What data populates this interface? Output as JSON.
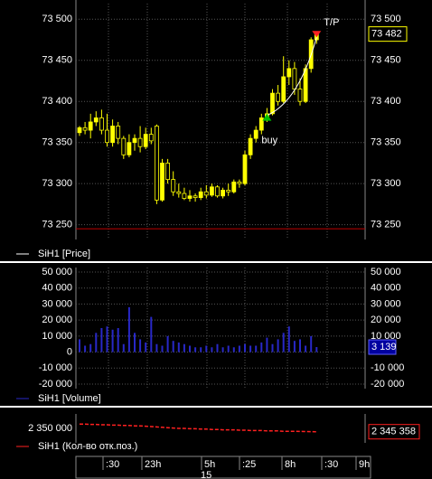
{
  "chart_data": [
    {
      "type": "candlestick",
      "legend": "SiH1 [Price]",
      "up_color": "#ffff00",
      "down_color": "#000000",
      "wick_color": "#ffff00",
      "open": [
        73362,
        73368,
        73365,
        73375,
        73380,
        73365,
        73350,
        73370,
        73355,
        73335,
        73350,
        73355,
        73345,
        73360,
        73370,
        73280,
        73325,
        73305,
        73290,
        73288,
        73282,
        73285,
        73283,
        73290,
        73286,
        73296,
        73285,
        73292,
        73290,
        73302,
        73300,
        73335,
        73355,
        73365,
        73380,
        73385,
        73410,
        73400,
        73430,
        73440,
        73415,
        73400,
        73440,
        73475
      ],
      "high": [
        73370,
        73375,
        73385,
        73388,
        73390,
        73385,
        73378,
        73375,
        73358,
        73360,
        73360,
        73370,
        73368,
        73368,
        73372,
        73330,
        73330,
        73315,
        73300,
        73295,
        73292,
        73288,
        73295,
        73298,
        73300,
        73298,
        73295,
        73300,
        73305,
        73305,
        73340,
        73360,
        73370,
        73385,
        73392,
        73415,
        73420,
        73455,
        73450,
        73448,
        73428,
        73445,
        73478,
        73482
      ],
      "low": [
        73358,
        73360,
        73355,
        73370,
        73360,
        73345,
        73345,
        73348,
        73330,
        73332,
        73340,
        73338,
        73342,
        73348,
        73275,
        73278,
        73300,
        73285,
        73283,
        73280,
        73278,
        73278,
        73280,
        73282,
        73284,
        73283,
        73282,
        73285,
        73288,
        73295,
        73298,
        73330,
        73350,
        73360,
        73375,
        73383,
        73395,
        73398,
        73420,
        73408,
        73395,
        73398,
        73435,
        73470
      ],
      "close": [
        73368,
        73365,
        73375,
        73380,
        73365,
        73350,
        73370,
        73355,
        73335,
        73350,
        73355,
        73345,
        73360,
        73352,
        73280,
        73325,
        73305,
        73290,
        73288,
        73282,
        73285,
        73283,
        73290,
        73286,
        73296,
        73285,
        73292,
        73290,
        73302,
        73300,
        73335,
        73355,
        73365,
        73380,
        73385,
        73410,
        73400,
        73430,
        73440,
        73415,
        73400,
        73440,
        73475,
        73482
      ],
      "ylim": [
        73232,
        73519
      ],
      "yticks": [
        {
          "value": 73500,
          "label": "73 500"
        },
        {
          "value": 73450,
          "label": "73 450"
        },
        {
          "value": 73400,
          "label": "73 400"
        },
        {
          "value": 73350,
          "label": "73 350"
        },
        {
          "value": 73300,
          "label": "73 300"
        },
        {
          "value": 73250,
          "label": "73 250"
        }
      ],
      "grid": true,
      "level": 73245,
      "level_color": "#c00000",
      "current": {
        "value": 73482,
        "label": "73 482"
      },
      "current_color": "#ffff00",
      "annotations": [
        {
          "text": "T/P",
          "value": 73478,
          "color": "#ff2020"
        },
        {
          "text": "buy",
          "value": 73383,
          "color": "#00c000"
        }
      ]
    },
    {
      "type": "bar",
      "legend": "SiH1 [Volume]",
      "color": "#2828c8",
      "values": [
        8000,
        4000,
        5000,
        12000,
        15000,
        16000,
        14000,
        15000,
        5000,
        28000,
        12000,
        8000,
        6000,
        22000,
        5000,
        4000,
        10000,
        7000,
        6000,
        5000,
        4000,
        3000,
        3000,
        4000,
        3000,
        5000,
        3000,
        4000,
        3000,
        4000,
        5000,
        4000,
        4000,
        6000,
        9000,
        5000,
        8000,
        12000,
        16000,
        7000,
        8000,
        4000,
        10000,
        3139
      ],
      "ylim": [
        -22800,
        52800
      ],
      "yticks": [
        {
          "value": 50000,
          "label": "50 000"
        },
        {
          "value": 40000,
          "label": "40 000"
        },
        {
          "value": 30000,
          "label": "30 000"
        },
        {
          "value": 20000,
          "label": "20 000"
        },
        {
          "value": 10000,
          "label": "10 000"
        },
        0,
        {
          "value": -10000,
          "label": "-10 000"
        },
        {
          "value": -20000,
          "label": "-20 000"
        }
      ],
      "grid": true,
      "current": {
        "value": 3139,
        "label": "3 139"
      }
    },
    {
      "type": "line",
      "legend": "SiH1 (Кол-во отк.поз.)",
      "color": "#ff2020",
      "values": [
        2356000,
        2356000,
        2355500,
        2355500,
        2355000,
        2355000,
        2354500,
        2354500,
        2354000,
        2354000,
        2353500,
        2353500,
        2353000,
        2352500,
        2352000,
        2351500,
        2351000,
        2350500,
        2350000,
        2350000,
        2349500,
        2349500,
        2349000,
        2349000,
        2348500,
        2348500,
        2348000,
        2348000,
        2348000,
        2347500,
        2347500,
        2347000,
        2347000,
        2347000,
        2346500,
        2346500,
        2346500,
        2346000,
        2346000,
        2346000,
        2345800,
        2345600,
        2345500,
        2345358
      ],
      "ylim": [
        2330000,
        2370000
      ],
      "yticks": [
        {
          "value": 2350000,
          "label": "2 350 000"
        }
      ],
      "current": {
        "value": 2345358,
        "label": "2 345 358"
      }
    }
  ],
  "time_axis": {
    "labels": [
      ":30",
      "23h",
      "5h",
      ":25",
      "8h",
      ":30",
      "9h"
    ],
    "sublabel": "15"
  }
}
